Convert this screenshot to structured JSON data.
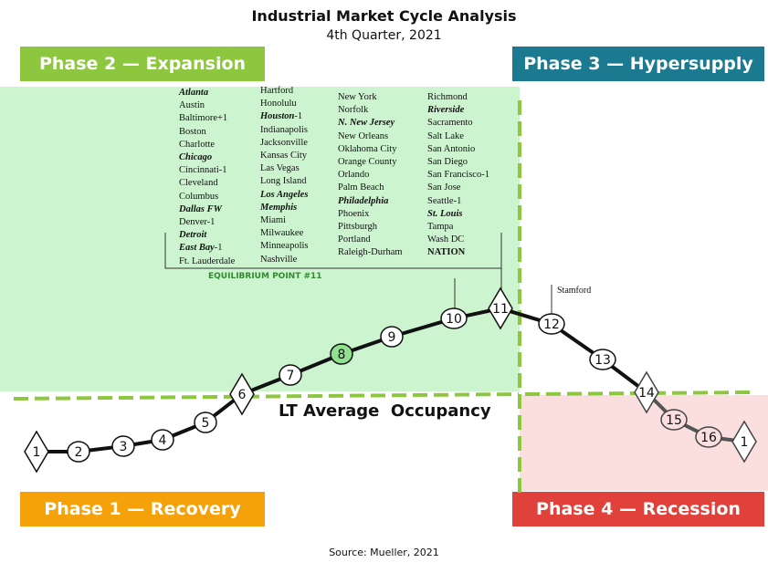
{
  "title": "Industrial Market Cycle Analysis",
  "subtitle": "4th Quarter, 2021",
  "source": "Source: Mueller, 2021",
  "lt_average_label": "LT Average  Occupancy",
  "equilibrium_label": "EQUILIBRIUM POINT #11",
  "stamford_label": "Stamford",
  "phases": {
    "expansion": {
      "label": "Phase 2 — Expansion",
      "color": "#8dc63f"
    },
    "hypersupply": {
      "label": "Phase 3 — Hypersupply",
      "color": "#1b7a90"
    },
    "recovery": {
      "label": "Phase 1 — Recovery",
      "color": "#f5a20a"
    },
    "recession": {
      "label": "Phase 4 — Recession",
      "color": "#e0413a"
    }
  },
  "cycle_points": [
    {
      "label": "1",
      "shape": "diamond"
    },
    {
      "label": "2",
      "shape": "circle"
    },
    {
      "label": "3",
      "shape": "circle"
    },
    {
      "label": "4",
      "shape": "circle"
    },
    {
      "label": "5",
      "shape": "circle"
    },
    {
      "label": "6",
      "shape": "diamond"
    },
    {
      "label": "7",
      "shape": "circle"
    },
    {
      "label": "8",
      "shape": "circle",
      "highlight": true
    },
    {
      "label": "9",
      "shape": "circle"
    },
    {
      "label": "10",
      "shape": "circle"
    },
    {
      "label": "11",
      "shape": "diamond"
    },
    {
      "label": "12",
      "shape": "circle"
    },
    {
      "label": "13",
      "shape": "circle"
    },
    {
      "label": "14",
      "shape": "diamond"
    },
    {
      "label": "15",
      "shape": "circle"
    },
    {
      "label": "16",
      "shape": "circle"
    },
    {
      "label": "1",
      "shape": "diamond"
    }
  ],
  "city_columns": [
    [
      {
        "name": "Atlanta",
        "bold": true
      },
      {
        "name": "Austin"
      },
      {
        "name": "Baltimore+1"
      },
      {
        "name": "Boston"
      },
      {
        "name": "Charlotte"
      },
      {
        "name": "Chicago",
        "bold": true
      },
      {
        "name": "Cincinnati-1"
      },
      {
        "name": "Cleveland"
      },
      {
        "name": "Columbus"
      },
      {
        "name": "Dallas FW",
        "bold": true
      },
      {
        "name": "Denver-1"
      },
      {
        "name": "Detroit",
        "bold": true
      },
      {
        "name": "East Bay",
        "bold": true,
        "suffix": "-1"
      },
      {
        "name": "Ft. Lauderdale"
      }
    ],
    [
      {
        "name": "Hartford"
      },
      {
        "name": "Honolulu"
      },
      {
        "name": "Houston",
        "bold": true,
        "suffix": "-1"
      },
      {
        "name": "Indianapolis"
      },
      {
        "name": "Jacksonville"
      },
      {
        "name": "Kansas City"
      },
      {
        "name": "Las Vegas"
      },
      {
        "name": "Long Island"
      },
      {
        "name": "Los Angeles",
        "bold": true
      },
      {
        "name": "Memphis",
        "bold": true
      },
      {
        "name": "Miami"
      },
      {
        "name": "Milwaukee"
      },
      {
        "name": "Minneapolis"
      },
      {
        "name": "Nashville"
      }
    ],
    [
      {
        "name": "New York"
      },
      {
        "name": "Norfolk"
      },
      {
        "name": "N. New Jersey",
        "bold": true
      },
      {
        "name": "New Orleans"
      },
      {
        "name": "Oklahoma City"
      },
      {
        "name": "Orange County"
      },
      {
        "name": "Orlando"
      },
      {
        "name": "Palm Beach"
      },
      {
        "name": "Philadelphia",
        "bold": true
      },
      {
        "name": "Phoenix"
      },
      {
        "name": "Pittsburgh"
      },
      {
        "name": "Portland"
      },
      {
        "name": "Raleigh-Durham"
      }
    ],
    [
      {
        "name": "Richmond"
      },
      {
        "name": "Riverside",
        "bold": true
      },
      {
        "name": "Sacramento"
      },
      {
        "name": "Salt Lake"
      },
      {
        "name": "San Antonio"
      },
      {
        "name": "San Diego"
      },
      {
        "name": "San Francisco-1"
      },
      {
        "name": "San Jose"
      },
      {
        "name": "Seattle-1"
      },
      {
        "name": "St. Louis",
        "bold": true
      },
      {
        "name": "Tampa"
      },
      {
        "name": "Wash DC"
      },
      {
        "name": "NATION",
        "nation": true
      }
    ]
  ]
}
